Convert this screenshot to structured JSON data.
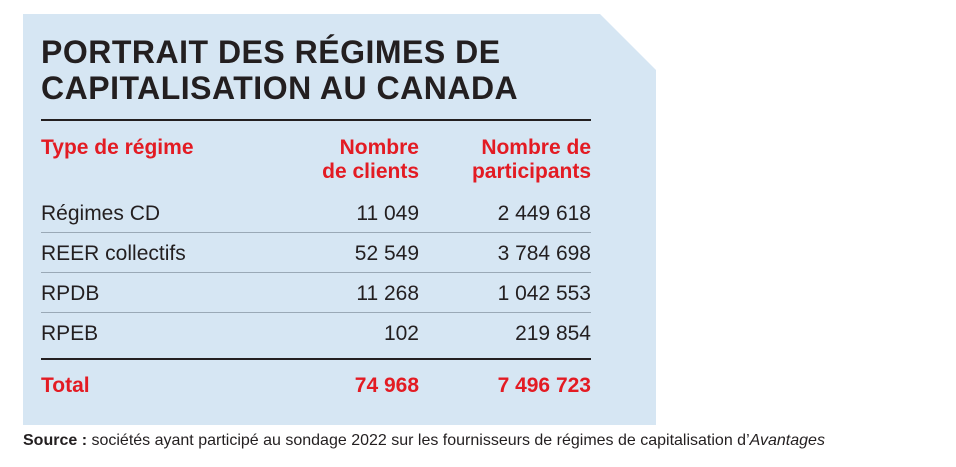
{
  "title": "PORTRAIT DES RÉGIMES DE CAPITALISATION AU CANADA",
  "colors": {
    "panel_background": "#d6e6f3",
    "accent_red": "#e31b23",
    "text": "#231f20"
  },
  "chart_data": {
    "type": "table",
    "title": "PORTRAIT DES RÉGIMES DE CAPITALISATION AU CANADA",
    "columns": [
      "Type de régime",
      "Nombre\nde clients",
      "Nombre de\nparticipants"
    ],
    "rows": [
      {
        "type": "Régimes CD",
        "clients": "11 049",
        "participants": "2 449 618"
      },
      {
        "type": "REER collectifs",
        "clients": "52 549",
        "participants": "3 784 698"
      },
      {
        "type": "RPDB",
        "clients": "11 268",
        "participants": "1 042 553"
      },
      {
        "type": "RPEB",
        "clients": "102",
        "participants": "219 854"
      }
    ],
    "total": {
      "label": "Total",
      "clients": "74 968",
      "participants": "7 496 723"
    }
  },
  "source": {
    "label": "Source :",
    "text": " sociétés ayant participé au sondage 2022 sur les fournisseurs de régimes de capitalisation d’",
    "publication": "Avantages"
  }
}
